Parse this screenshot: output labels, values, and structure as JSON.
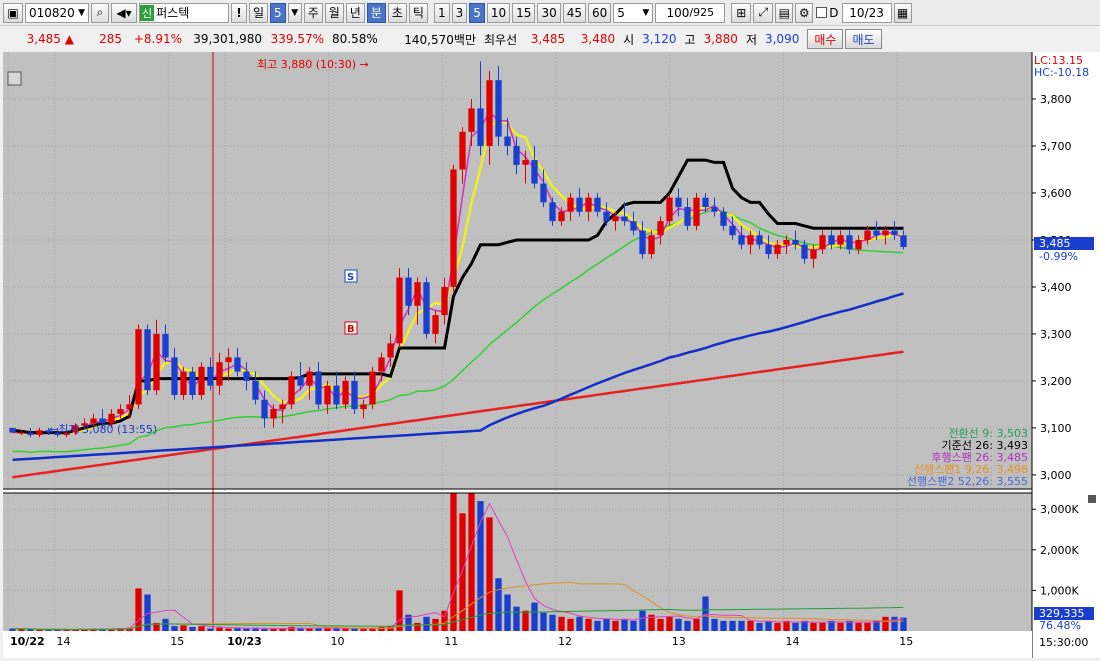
{
  "toolbar": {
    "code": "010820",
    "badge": "신",
    "name": "퍼스텍",
    "excl": "!",
    "period_day": "일",
    "period_num": "5",
    "week": "주",
    "month": "월",
    "year": "년",
    "minute": "분",
    "second": "초",
    "tick": "틱",
    "nums": [
      "1",
      "3",
      "5",
      "10",
      "15",
      "30",
      "45",
      "60"
    ],
    "interval": "5",
    "count": "100",
    "total": "/925",
    "d_label": "D",
    "date": "10/23"
  },
  "quote": {
    "price": "3,485",
    "arrow": "▲",
    "change": "285",
    "change_pct": "+8.91%",
    "volume": "39,301,980",
    "vol_ratio": "339.57%",
    "rate": "80.58%",
    "amount": "140,570백만",
    "priority_label": "최우선",
    "ask": "3,485",
    "bid": "3,480",
    "open_label": "시",
    "open": "3,120",
    "high_label": "고",
    "high": "3,880",
    "low_label": "저",
    "low": "3,090",
    "buy": "매수",
    "sell": "매도"
  },
  "chart_info": {
    "lc": "LC:13.15",
    "hc": "HC:-10.18",
    "high_ann": "최고 3,880 (10:30) →",
    "low_ann": "←최저 3,080 (13:55)",
    "price_label": "3,485",
    "price_pct": "-0.99%",
    "vol_label": "329,335",
    "vol_pct": "76.48%",
    "time_label": "15:30:00",
    "marker_s": "S",
    "marker_b": "B"
  },
  "legend": [
    {
      "text": "전환선 9: 3,503",
      "color": "#1f9e5a"
    },
    {
      "text": "기준선 26: 3,493",
      "color": "#000000"
    },
    {
      "text": "후행스팬 26: 3,485",
      "color": "#b030c0"
    },
    {
      "text": "선행스팬1 9,26: 3,498",
      "color": "#e89020"
    },
    {
      "text": "선행스팬2 52,26: 3,555",
      "color": "#4a6ad0"
    }
  ],
  "y_axis": [
    "3,800",
    "3,700",
    "3,600",
    "3,500",
    "3,400",
    "3,300",
    "3,200",
    "3,100",
    "3,000"
  ],
  "vol_axis": [
    "3,000K",
    "2,000K",
    "1,000K"
  ],
  "x_axis": [
    {
      "label": "10/22",
      "bold": true
    },
    {
      "label": "14",
      "bold": false
    },
    {
      "label": "15",
      "bold": false
    },
    {
      "label": "10/23",
      "bold": true
    },
    {
      "label": "10",
      "bold": false
    },
    {
      "label": "11",
      "bold": false
    },
    {
      "label": "12",
      "bold": false
    },
    {
      "label": "13",
      "bold": false
    },
    {
      "label": "14",
      "bold": false
    },
    {
      "label": "15",
      "bold": false
    }
  ],
  "colors": {
    "up": "#e00000",
    "down": "#1a3fcf",
    "bg": "#c0c0c0",
    "panel": "#bdbdbd"
  },
  "chart_data": {
    "type": "candlestick",
    "candles": [
      [
        3100,
        3100,
        3090,
        3090
      ],
      [
        3090,
        3095,
        3085,
        3090
      ],
      [
        3090,
        3100,
        3080,
        3085
      ],
      [
        3085,
        3100,
        3080,
        3095
      ],
      [
        3095,
        3100,
        3085,
        3090
      ],
      [
        3090,
        3100,
        3080,
        3085
      ],
      [
        3085,
        3095,
        3080,
        3090
      ],
      [
        3090,
        3110,
        3085,
        3105
      ],
      [
        3105,
        3120,
        3100,
        3110
      ],
      [
        3110,
        3130,
        3100,
        3120
      ],
      [
        3120,
        3140,
        3100,
        3110
      ],
      [
        3110,
        3140,
        3100,
        3130
      ],
      [
        3130,
        3150,
        3120,
        3140
      ],
      [
        3140,
        3170,
        3120,
        3150
      ],
      [
        3150,
        3320,
        3140,
        3310
      ],
      [
        3310,
        3320,
        3170,
        3180
      ],
      [
        3180,
        3330,
        3170,
        3300
      ],
      [
        3300,
        3320,
        3240,
        3250
      ],
      [
        3250,
        3270,
        3160,
        3170
      ],
      [
        3170,
        3230,
        3160,
        3220
      ],
      [
        3220,
        3230,
        3160,
        3170
      ],
      [
        3170,
        3240,
        3160,
        3230
      ],
      [
        3230,
        3250,
        3180,
        3190
      ],
      [
        3190,
        3260,
        3170,
        3240
      ],
      [
        3240,
        3270,
        3200,
        3250
      ],
      [
        3250,
        3270,
        3210,
        3220
      ],
      [
        3220,
        3240,
        3180,
        3200
      ],
      [
        3200,
        3220,
        3150,
        3160
      ],
      [
        3160,
        3180,
        3100,
        3120
      ],
      [
        3120,
        3150,
        3100,
        3140
      ],
      [
        3140,
        3160,
        3110,
        3150
      ],
      [
        3150,
        3220,
        3140,
        3210
      ],
      [
        3210,
        3240,
        3180,
        3190
      ],
      [
        3190,
        3230,
        3160,
        3220
      ],
      [
        3220,
        3240,
        3140,
        3150
      ],
      [
        3150,
        3200,
        3130,
        3190
      ],
      [
        3190,
        3220,
        3140,
        3150
      ],
      [
        3150,
        3210,
        3140,
        3200
      ],
      [
        3200,
        3220,
        3130,
        3140
      ],
      [
        3140,
        3160,
        3120,
        3150
      ],
      [
        3150,
        3230,
        3140,
        3220
      ],
      [
        3220,
        3260,
        3200,
        3250
      ],
      [
        3250,
        3300,
        3230,
        3280
      ],
      [
        3280,
        3440,
        3270,
        3420
      ],
      [
        3420,
        3440,
        3340,
        3360
      ],
      [
        3360,
        3420,
        3320,
        3410
      ],
      [
        3410,
        3420,
        3290,
        3300
      ],
      [
        3300,
        3350,
        3280,
        3340
      ],
      [
        3340,
        3420,
        3320,
        3400
      ],
      [
        3400,
        3660,
        3390,
        3650
      ],
      [
        3650,
        3740,
        3620,
        3730
      ],
      [
        3730,
        3800,
        3700,
        3780
      ],
      [
        3780,
        3880,
        3680,
        3700
      ],
      [
        3700,
        3860,
        3660,
        3840
      ],
      [
        3840,
        3870,
        3700,
        3720
      ],
      [
        3720,
        3760,
        3680,
        3700
      ],
      [
        3700,
        3720,
        3640,
        3660
      ],
      [
        3660,
        3690,
        3620,
        3670
      ],
      [
        3670,
        3700,
        3610,
        3620
      ],
      [
        3620,
        3650,
        3570,
        3580
      ],
      [
        3580,
        3590,
        3530,
        3540
      ],
      [
        3540,
        3570,
        3530,
        3560
      ],
      [
        3560,
        3600,
        3540,
        3590
      ],
      [
        3590,
        3610,
        3550,
        3560
      ],
      [
        3560,
        3600,
        3540,
        3590
      ],
      [
        3590,
        3600,
        3550,
        3560
      ],
      [
        3560,
        3580,
        3530,
        3540
      ],
      [
        3540,
        3560,
        3520,
        3550
      ],
      [
        3550,
        3580,
        3530,
        3540
      ],
      [
        3540,
        3560,
        3510,
        3520
      ],
      [
        3520,
        3540,
        3460,
        3470
      ],
      [
        3470,
        3520,
        3460,
        3510
      ],
      [
        3510,
        3550,
        3490,
        3540
      ],
      [
        3540,
        3600,
        3530,
        3590
      ],
      [
        3590,
        3610,
        3550,
        3570
      ],
      [
        3570,
        3590,
        3520,
        3530
      ],
      [
        3530,
        3600,
        3520,
        3590
      ],
      [
        3590,
        3600,
        3560,
        3570
      ],
      [
        3570,
        3590,
        3550,
        3560
      ],
      [
        3560,
        3570,
        3520,
        3530
      ],
      [
        3530,
        3550,
        3500,
        3510
      ],
      [
        3510,
        3530,
        3480,
        3490
      ],
      [
        3490,
        3520,
        3470,
        3510
      ],
      [
        3510,
        3520,
        3480,
        3490
      ],
      [
        3490,
        3510,
        3460,
        3470
      ],
      [
        3470,
        3500,
        3460,
        3490
      ],
      [
        3490,
        3510,
        3470,
        3500
      ],
      [
        3500,
        3520,
        3480,
        3490
      ],
      [
        3490,
        3500,
        3450,
        3460
      ],
      [
        3460,
        3490,
        3440,
        3480
      ],
      [
        3480,
        3520,
        3470,
        3510
      ],
      [
        3510,
        3520,
        3480,
        3490
      ],
      [
        3490,
        3520,
        3480,
        3510
      ],
      [
        3510,
        3520,
        3470,
        3480
      ],
      [
        3480,
        3510,
        3470,
        3500
      ],
      [
        3500,
        3530,
        3490,
        3520
      ],
      [
        3520,
        3540,
        3500,
        3510
      ],
      [
        3510,
        3530,
        3490,
        3520
      ],
      [
        3520,
        3540,
        3500,
        3510
      ],
      [
        3510,
        3520,
        3480,
        3485
      ]
    ],
    "volume_k": [
      60,
      50,
      40,
      30,
      30,
      40,
      30,
      40,
      50,
      60,
      50,
      60,
      70,
      80,
      1050,
      900,
      200,
      300,
      120,
      140,
      100,
      120,
      60,
      80,
      60,
      70,
      60,
      80,
      50,
      50,
      60,
      100,
      80,
      60,
      70,
      60,
      80,
      70,
      60,
      60,
      70,
      100,
      120,
      1000,
      400,
      200,
      350,
      300,
      500,
      3400,
      2900,
      3400,
      3200,
      2800,
      1300,
      900,
      600,
      500,
      700,
      450,
      400,
      350,
      300,
      350,
      300,
      250,
      300,
      250,
      300,
      250,
      500,
      400,
      300,
      350,
      300,
      250,
      300,
      850,
      300,
      250,
      250,
      250,
      250,
      200,
      250,
      200,
      250,
      200,
      250,
      200,
      200,
      250,
      200,
      250,
      200,
      200,
      250,
      350,
      350,
      330
    ],
    "ylim": [
      2970,
      3900
    ],
    "vol_ylim": [
      0,
      3400
    ]
  }
}
